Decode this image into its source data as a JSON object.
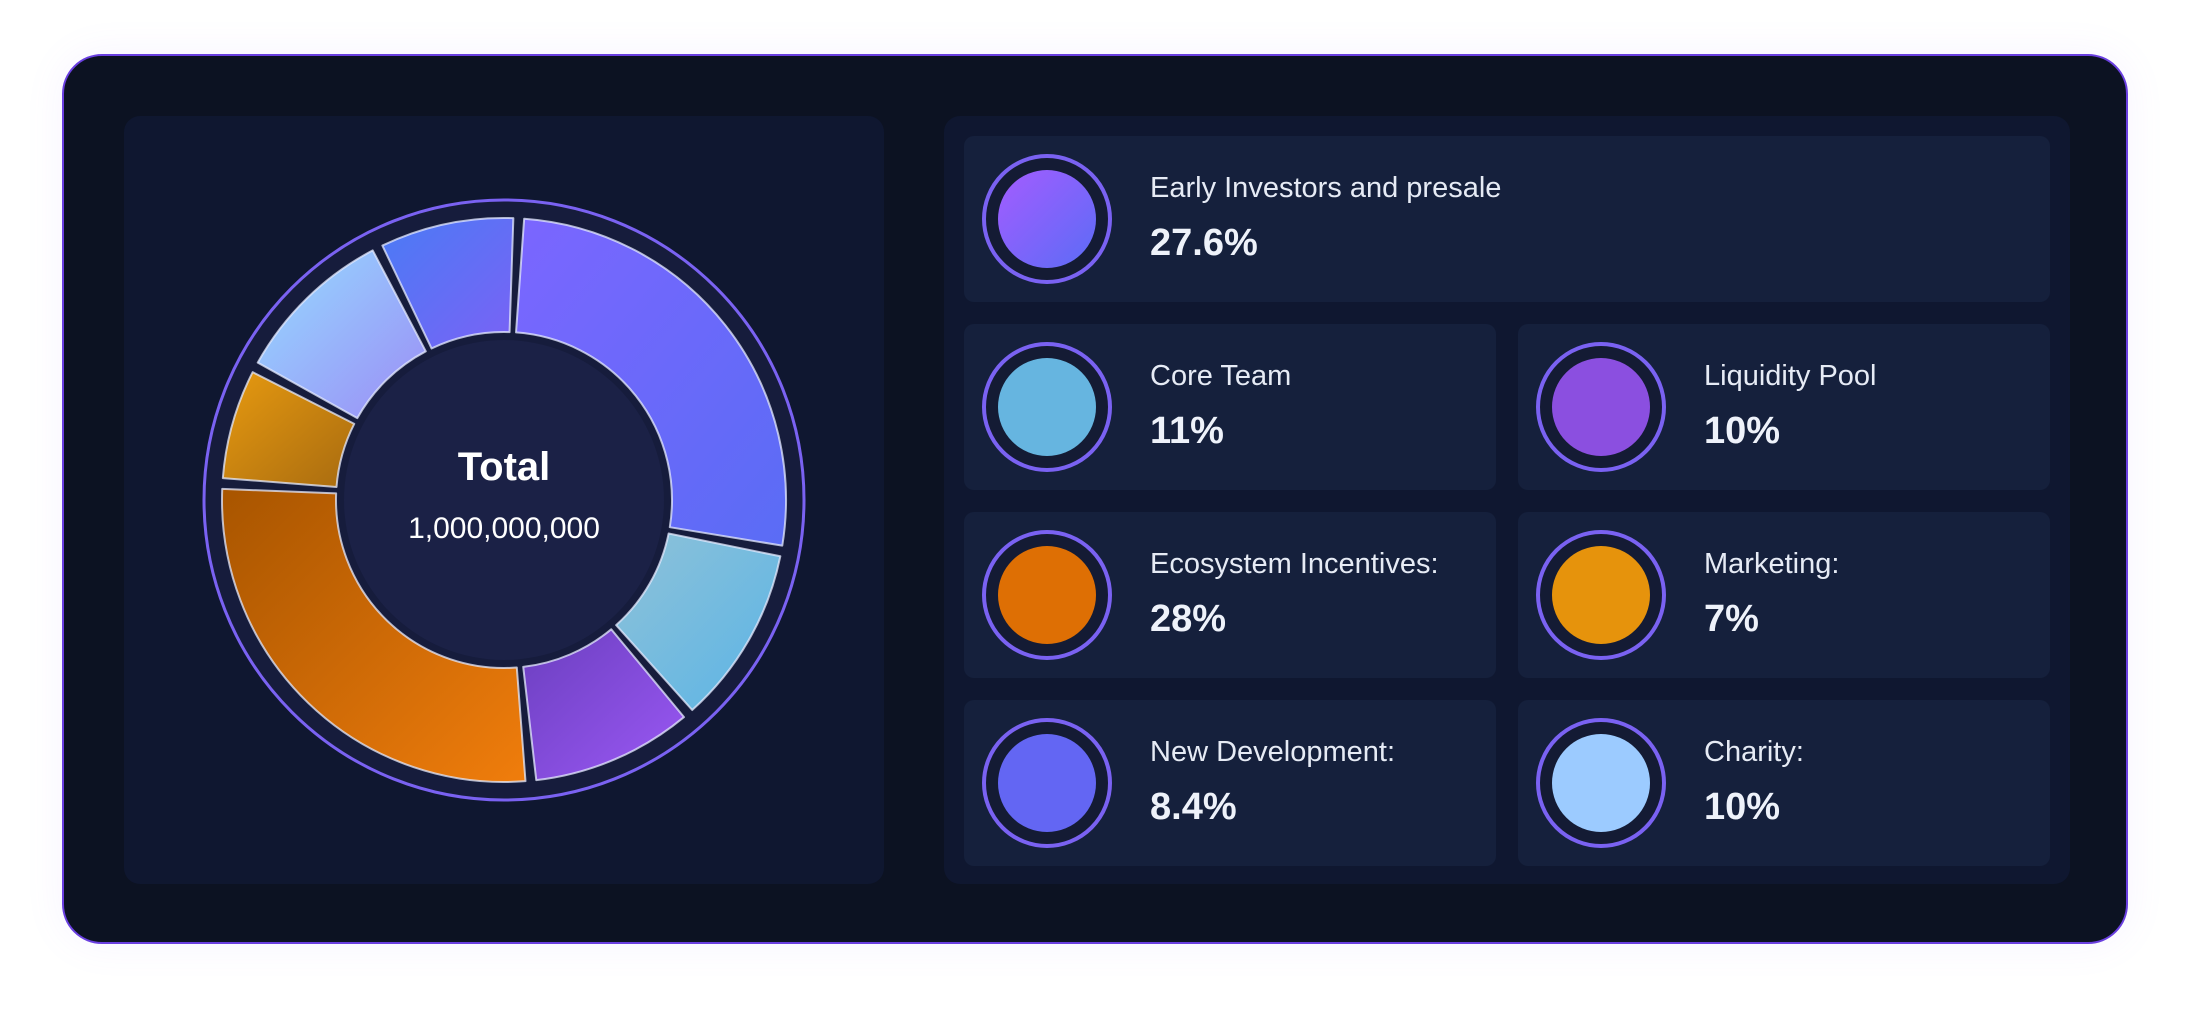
{
  "chart_data": {
    "type": "pie",
    "center_title": "Total",
    "center_value": "1,000,000,000",
    "legend_placement": "right",
    "slices": [
      {
        "label": "Early Investors and presale",
        "value_text": "27.6%",
        "value": 27.6,
        "color": "#7b66ff",
        "color_end": "#5a6cf5",
        "swatch": "linear-gradient(135deg,#a45cff,#5b6cf6)"
      },
      {
        "label": "Core Team",
        "value_text": "11%",
        "value": 11,
        "color": "#8fc2d8",
        "color_end": "#5ab4e6",
        "swatch": "#66b5e0"
      },
      {
        "label": "Liquidity Pool",
        "value_text": "10%",
        "value": 10,
        "color": "#6b3fbf",
        "color_end": "#9b58f5",
        "swatch": "#8b4fe0"
      },
      {
        "label": "Ecosystem Incentives:",
        "value_text": "28%",
        "value": 28,
        "color": "#a85500",
        "color_end": "#f07d0c",
        "swatch": "#de6f04"
      },
      {
        "label": "Marketing:",
        "value_text": "7%",
        "value": 7,
        "color": "#e79a10",
        "color_end": "#a86b10",
        "swatch": "#e6930c"
      },
      {
        "label": "Charity:",
        "value_text": "10%",
        "value": 10,
        "color": "#95dcff",
        "color_end": "#9b8cf6",
        "swatch": "#9ccbff"
      },
      {
        "label": "New Development:",
        "value_text": "8.4%",
        "value": 8.4,
        "color": "#4a7bf5",
        "color_end": "#7a62f5",
        "swatch": "#6366f3"
      }
    ]
  },
  "legend": {
    "order": [
      0,
      1,
      2,
      3,
      4,
      6,
      5
    ]
  }
}
